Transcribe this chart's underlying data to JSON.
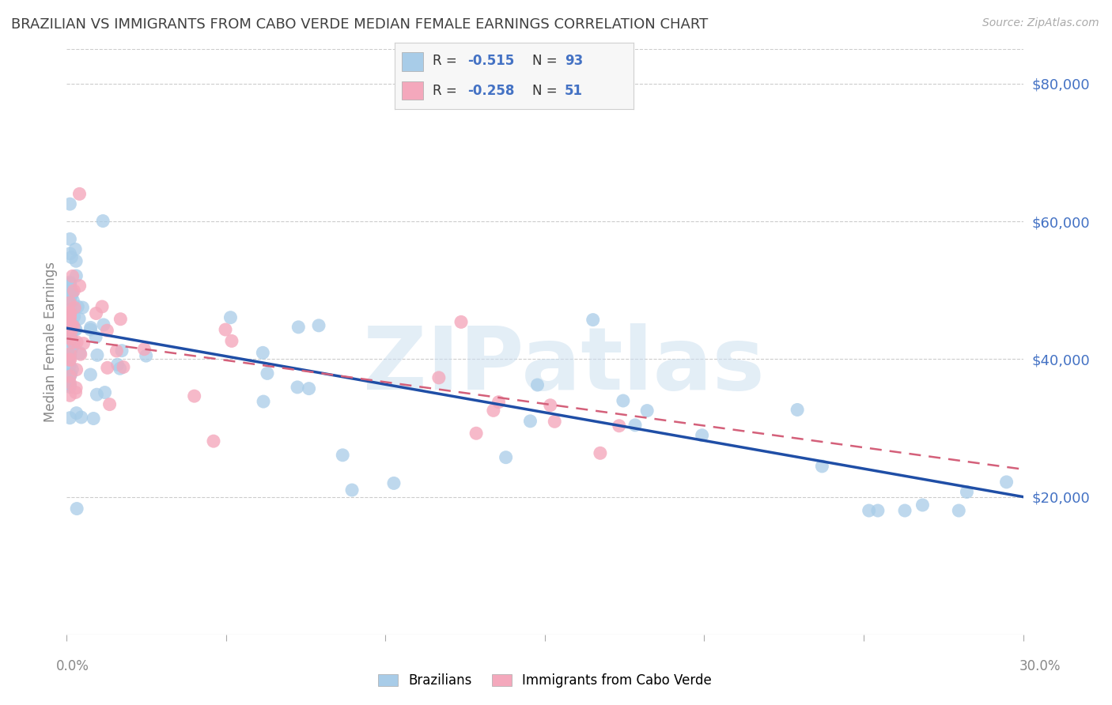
{
  "title": "BRAZILIAN VS IMMIGRANTS FROM CABO VERDE MEDIAN FEMALE EARNINGS CORRELATION CHART",
  "source": "Source: ZipAtlas.com",
  "ylabel": "Median Female Earnings",
  "y_ticks": [
    20000,
    40000,
    60000,
    80000
  ],
  "y_tick_labels": [
    "$20,000",
    "$40,000",
    "$60,000",
    "$80,000"
  ],
  "xmin": 0.0,
  "xmax": 0.3,
  "ymin": 0,
  "ymax": 85000,
  "R_blue": -0.515,
  "N_blue": 93,
  "R_pink": -0.258,
  "N_pink": 51,
  "blue_color": "#a8cce8",
  "pink_color": "#f4a8bc",
  "blue_line_color": "#1f4ea6",
  "pink_line_color": "#d4607a",
  "legend_label_blue": "Brazilians",
  "legend_label_pink": "Immigrants from Cabo Verde",
  "watermark": "ZIPatlas",
  "background_color": "#ffffff",
  "grid_color": "#cccccc",
  "axis_label_color": "#4472c4",
  "title_color": "#404040",
  "axis_color": "#888888"
}
